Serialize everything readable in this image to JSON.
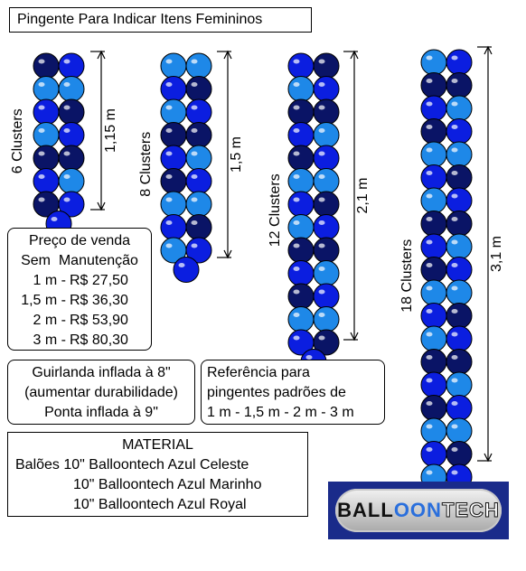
{
  "title": "Pingente Para Indicar Itens Femininos",
  "colors": {
    "light": "#1e88e8",
    "navy": "#0a1466",
    "royal": "#0b1ee0"
  },
  "pendants": [
    {
      "clusters_label": "6 Clusters",
      "height_label": "1,15 m",
      "clusters": 6
    },
    {
      "clusters_label": "8 Clusters",
      "height_label": "1,5 m",
      "clusters": 8
    },
    {
      "clusters_label": "12 Clusters",
      "height_label": "2,1 m",
      "clusters": 12
    },
    {
      "clusters_label": "18 Clusters",
      "height_label": "3,1 m",
      "clusters": 18
    }
  ],
  "price": {
    "heading1": "Preço de venda",
    "heading2": "Sem  Manutenção",
    "rows": [
      {
        "size": "1 m -",
        "value": "R$ 27,50"
      },
      {
        "size": "1,5 m -",
        "value": "R$ 36,30"
      },
      {
        "size": "2 m -",
        "value": "R$ 53,90"
      },
      {
        "size": "3 m -",
        "value": "R$ 80,30"
      }
    ]
  },
  "guirlanda": {
    "line1": "Guirlanda inflada à 8\"",
    "line2": "(aumentar durabilidade)",
    "line3": "Ponta inflada à 9\""
  },
  "reference": {
    "line1": "Referência para",
    "line2": "pingentes padrões de",
    "line3": "1 m - 1,5 m - 2 m - 3 m"
  },
  "material": {
    "heading": "MATERIAL",
    "line1": "Balões 10\" Balloontech Azul Celeste",
    "line2": "10\" Balloontech Azul Marinho",
    "line3": "10\" Balloontech Azul Royal"
  },
  "logo": {
    "part1": "BALL",
    "part2": "OON",
    "part3": "TECH"
  }
}
